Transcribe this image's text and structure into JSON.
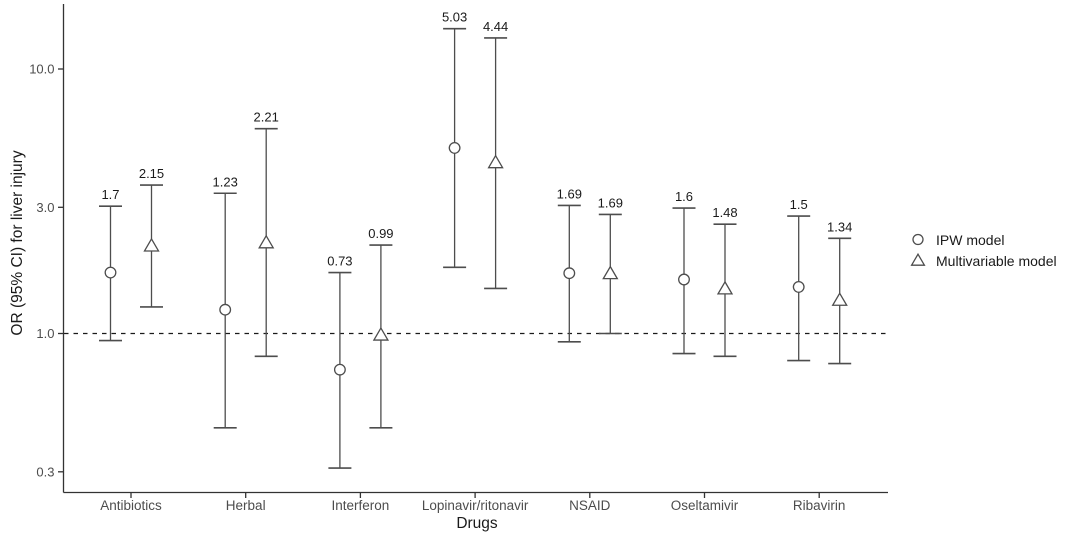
{
  "chart_data": {
    "type": "errorbar",
    "title": "",
    "xlabel": "Drugs",
    "ylabel": "OR (95% CI) for liver injury",
    "y_scale": "log10",
    "ylim": [
      0.25,
      17
    ],
    "grid": false,
    "legend_position": "right",
    "reference_line": 1.0,
    "y_ticks": [
      {
        "value": 10.0,
        "label": "10.0"
      },
      {
        "value": 3.0,
        "label": "3.0"
      },
      {
        "value": 1.0,
        "label": "1.0"
      },
      {
        "value": 0.3,
        "label": "0.3"
      }
    ],
    "categories": [
      "Antibiotics",
      "Herbal",
      "Interferon",
      "Lopinavir/ritonavir",
      "NSAID",
      "Oseltamivir",
      "Ribavirin"
    ],
    "series": [
      {
        "name": "IPW model",
        "marker": "circle",
        "points": [
          {
            "estimate": 1.7,
            "label": "1.7",
            "lower": 0.94,
            "upper": 3.03
          },
          {
            "estimate": 1.23,
            "label": "1.23",
            "lower": 0.44,
            "upper": 3.39
          },
          {
            "estimate": 0.73,
            "label": "0.73",
            "lower": 0.31,
            "upper": 1.7
          },
          {
            "estimate": 5.03,
            "label": "5.03",
            "lower": 1.78,
            "upper": 14.2
          },
          {
            "estimate": 1.69,
            "label": "1.69",
            "lower": 0.93,
            "upper": 3.05
          },
          {
            "estimate": 1.6,
            "label": "1.6",
            "lower": 0.84,
            "upper": 2.98
          },
          {
            "estimate": 1.5,
            "label": "1.5",
            "lower": 0.79,
            "upper": 2.78
          }
        ]
      },
      {
        "name": "Multivariable model",
        "marker": "triangle",
        "points": [
          {
            "estimate": 2.15,
            "label": "2.15",
            "lower": 1.26,
            "upper": 3.64
          },
          {
            "estimate": 2.21,
            "label": "2.21",
            "lower": 0.82,
            "upper": 5.95
          },
          {
            "estimate": 0.99,
            "label": "0.99",
            "lower": 0.44,
            "upper": 2.16
          },
          {
            "estimate": 4.44,
            "label": "4.44",
            "lower": 1.48,
            "upper": 13.1
          },
          {
            "estimate": 1.69,
            "label": "1.69",
            "lower": 1.0,
            "upper": 2.82
          },
          {
            "estimate": 1.48,
            "label": "1.48",
            "lower": 0.82,
            "upper": 2.59
          },
          {
            "estimate": 1.34,
            "label": "1.34",
            "lower": 0.77,
            "upper": 2.29
          }
        ]
      }
    ],
    "colors": {
      "axis": "#333333",
      "tick_text": "#4d4d4d",
      "errorbar": "#4d4d4d",
      "marker_stroke": "#4d4d4d",
      "value_label": "#1a1a1a",
      "reference_line": "#1a1a1a",
      "background": "#ffffff"
    }
  }
}
